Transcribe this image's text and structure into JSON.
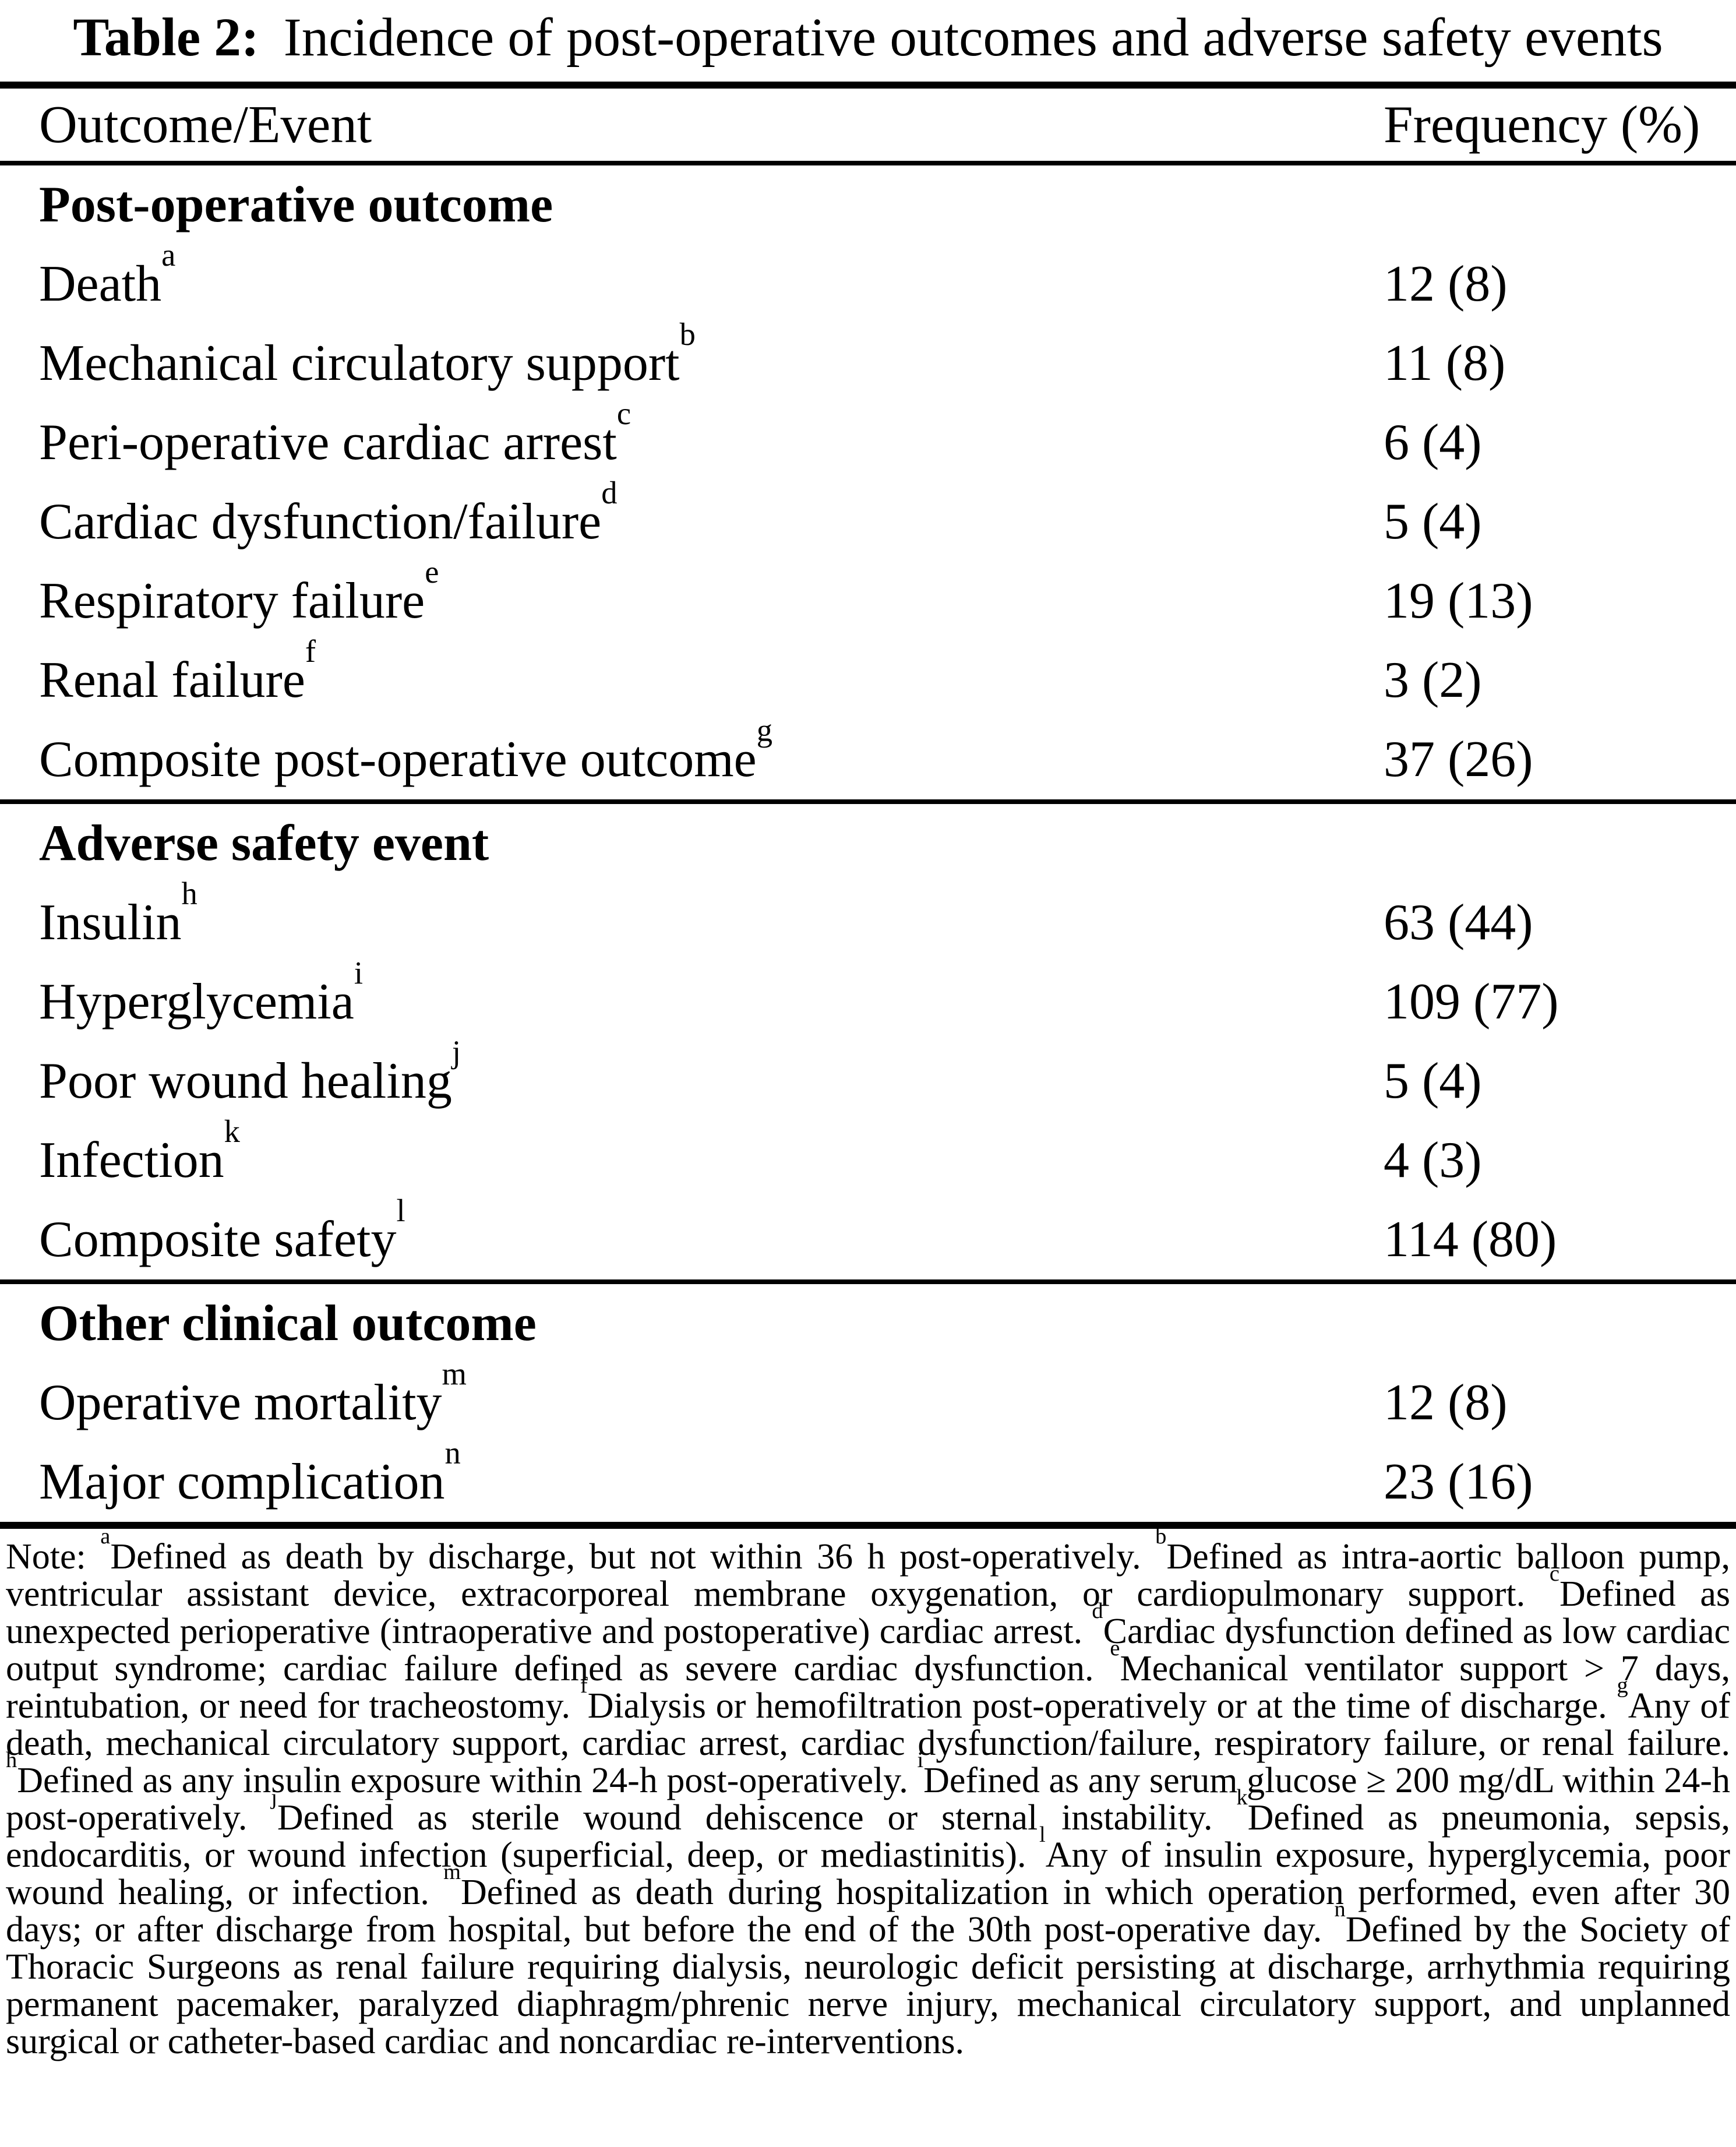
{
  "title": {
    "label": "Table 2:",
    "caption": "Incidence of post-operative outcomes and adverse safety events"
  },
  "table": {
    "columns": [
      "Outcome/Event",
      "Frequency (%)"
    ],
    "sections": [
      {
        "header": "Post-operative outcome",
        "rows": [
          {
            "label": "Death",
            "sup": "a",
            "value": "12 (8)"
          },
          {
            "label": "Mechanical circulatory support",
            "sup": "b",
            "value": "11 (8)"
          },
          {
            "label": "Peri-operative cardiac arrest",
            "sup": "c",
            "value": "6 (4)"
          },
          {
            "label": "Cardiac dysfunction/failure",
            "sup": "d",
            "value": "5 (4)"
          },
          {
            "label": "Respiratory failure",
            "sup": "e",
            "value": "19 (13)"
          },
          {
            "label": "Renal failure",
            "sup": "f",
            "value": "3 (2)"
          },
          {
            "label": "Composite post-operative outcome",
            "sup": "g",
            "value": "37 (26)"
          }
        ]
      },
      {
        "header": "Adverse safety event",
        "rows": [
          {
            "label": "Insulin",
            "sup": "h",
            "value": "63 (44)"
          },
          {
            "label": "Hyperglycemia",
            "sup": "i",
            "value": "109 (77)"
          },
          {
            "label": "Poor wound healing",
            "sup": "j",
            "value": "5 (4)"
          },
          {
            "label": "Infection",
            "sup": "k",
            "value": "4 (3)"
          },
          {
            "label": "Composite safety",
            "sup": "l",
            "value": "114 (80)"
          }
        ]
      },
      {
        "header": "Other clinical outcome",
        "rows": [
          {
            "label": "Operative mortality",
            "sup": "m",
            "value": "12 (8)"
          },
          {
            "label": "Major complication",
            "sup": "n",
            "value": "23 (16)"
          }
        ]
      }
    ]
  },
  "note": {
    "lead": "Note: ",
    "segments": [
      {
        "sup": "a",
        "text": "Defined as death by discharge, but not within 36 h post-operatively."
      },
      {
        "sup": "b",
        "text": "Defined as intra-aortic balloon pump, ventricular assistant device, extracorporeal membrane oxygenation, or cardiopulmonary support."
      },
      {
        "sup": "c",
        "text": "Defined as unexpected perioperative (intraoperative and postoperative) cardiac arrest."
      },
      {
        "sup": "d",
        "text": "Cardiac dysfunction defined as low cardiac output syndrome; cardiac failure defined as severe cardiac dysfunction."
      },
      {
        "sup": "e",
        "text": "Mechanical ventilator support > 7 days, reintubation, or need for tracheostomy."
      },
      {
        "sup": "f",
        "text": "Dialysis or hemofiltration post-operatively or at the time of discharge."
      },
      {
        "sup": "g",
        "text": "Any of death, mechanical circulatory support, cardiac arrest, cardiac dysfunction/failure, respiratory failure, or renal failure."
      },
      {
        "sup": "h",
        "text": "Defined as any insulin exposure within 24-h post-operatively."
      },
      {
        "sup": "i",
        "text": "Defined as any serum glucose ≥ 200 mg/dL within 24-h post-operatively."
      },
      {
        "sup": "j",
        "text": "Defined as sterile wound dehiscence or sternal instability."
      },
      {
        "sup": "k",
        "text": "Defined as pneumonia, sepsis, endocarditis, or wound infection (superficial, deep, or mediastinitis)."
      },
      {
        "sup": "l",
        "text": "Any of insulin exposure, hyperglycemia, poor wound healing, or infection."
      },
      {
        "sup": "m",
        "text": "Defined as death during hospitalization in which operation performed, even after 30 days; or after discharge from hospital, but before the end of the 30th post-operative day."
      },
      {
        "sup": "n",
        "text": "Defined by the Society of Thoracic Surgeons as renal failure requiring dialysis, neurologic deficit persisting at discharge, arrhythmia requiring permanent pacemaker, paralyzed diaphragm/phrenic nerve injury, mechanical circulatory support, and unplanned surgical or catheter-based cardiac and noncardiac re-interventions."
      }
    ]
  }
}
